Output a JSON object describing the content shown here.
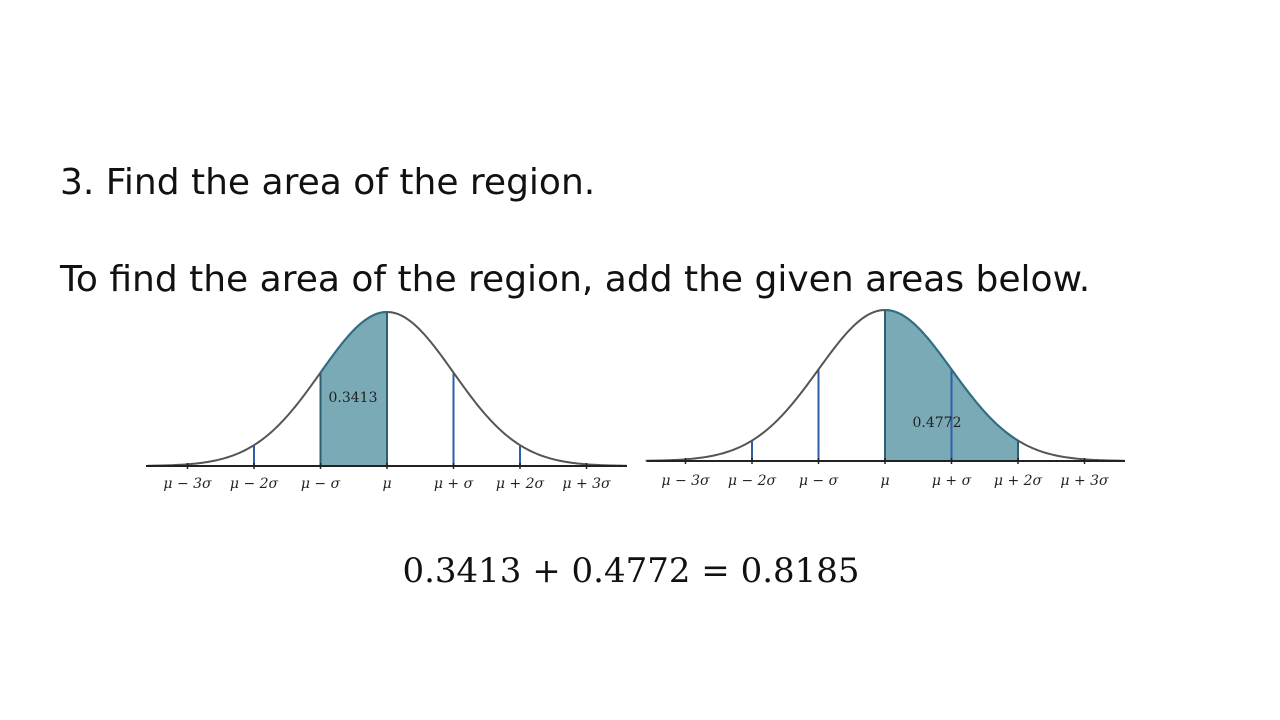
{
  "slide": {
    "heading": "3. Find the area of the region.",
    "instruction": "To find the area of the region, add the given areas below."
  },
  "diagrams": [
    {
      "tick_labels": [
        "μ − 3σ",
        "μ − 2σ",
        "μ − σ",
        "μ",
        "μ + σ",
        "μ + 2σ",
        "μ + 3σ"
      ],
      "shaded_range_sigma": [
        -1,
        0
      ],
      "area_label": "0.3413"
    },
    {
      "tick_labels": [
        "μ − 3σ",
        "μ − 2σ",
        "μ − σ",
        "μ",
        "μ + σ",
        "μ + 2σ",
        "μ + 3σ"
      ],
      "shaded_range_sigma": [
        0,
        2
      ],
      "area_label": "0.4772"
    }
  ],
  "equation": "0.3413 + 0.4772 = 0.8185",
  "colors": {
    "shade": "#7aaab6",
    "curve": "#555555",
    "marker": "#2e5fa8"
  }
}
